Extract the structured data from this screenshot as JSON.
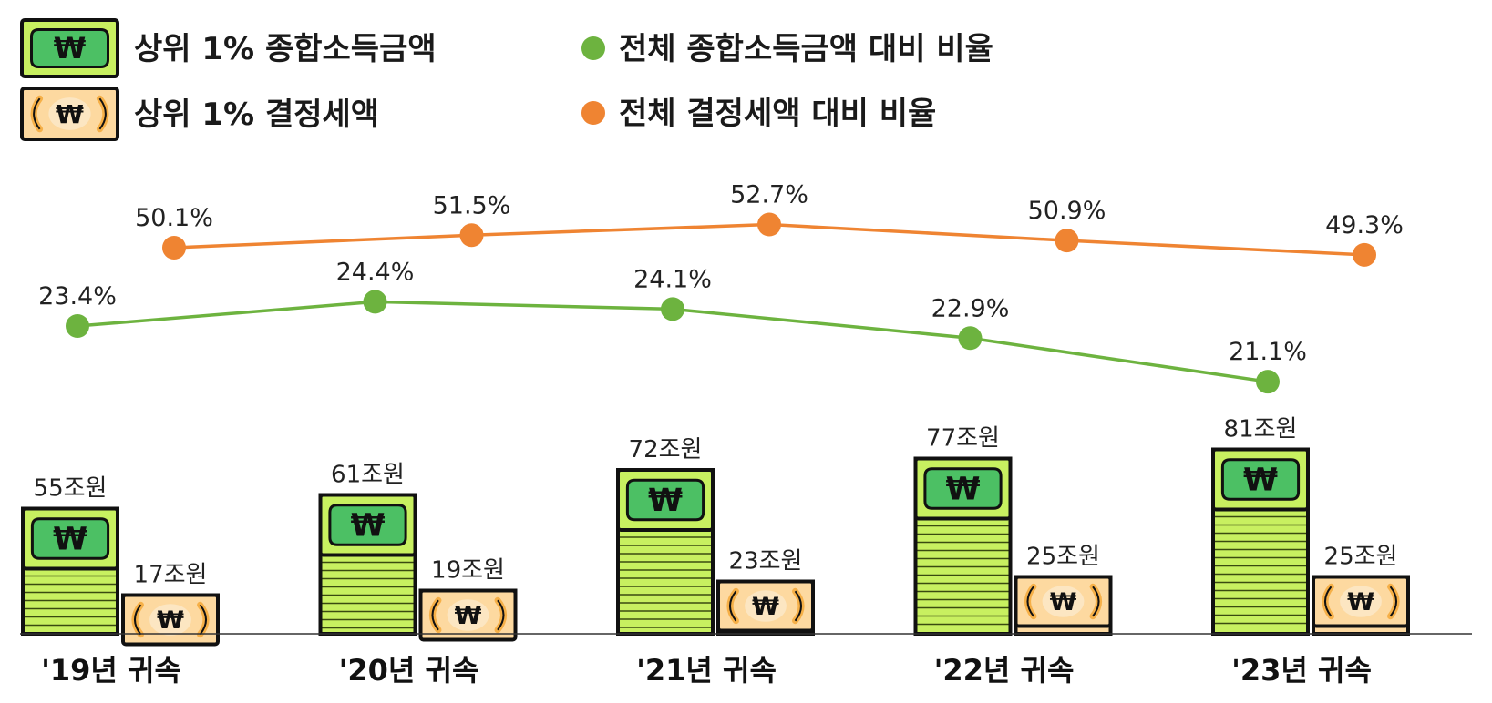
{
  "chart_data": {
    "type": "bar",
    "categories": [
      "'19년 귀속",
      "'20년 귀속",
      "'21년 귀속",
      "'22년 귀속",
      "'23년 귀속"
    ],
    "bar_series": [
      {
        "name": "상위 1% 종합소득금액",
        "values": [
          55,
          61,
          72,
          77,
          81
        ],
        "labels": [
          "55조원",
          "61조원",
          "72조원",
          "77조원",
          "81조원"
        ],
        "color": "#7dd64a"
      },
      {
        "name": "상위 1% 결정세액",
        "values": [
          17,
          19,
          23,
          25,
          25
        ],
        "labels": [
          "17조원",
          "19조원",
          "23조원",
          "25조원",
          "25조원"
        ],
        "color": "#f4a23a"
      }
    ],
    "line_series": [
      {
        "name": "전체 결정세액 대비 비율",
        "values": [
          50.1,
          51.5,
          52.7,
          50.9,
          49.3
        ],
        "labels": [
          "50.1%",
          "51.5%",
          "52.7%",
          "50.9%",
          "49.3%"
        ],
        "color": "#ef8432"
      },
      {
        "name": "전체 종합소득금액 대비 비율",
        "values": [
          23.4,
          24.4,
          24.1,
          22.9,
          21.1
        ],
        "labels": [
          "23.4%",
          "24.4%",
          "24.1%",
          "22.9%",
          "21.1%"
        ],
        "color": "#6db33f"
      }
    ],
    "legend": {
      "placement": "top",
      "items": [
        {
          "name": "상위 1% 종합소득금액",
          "icon": "green-banknote-icon"
        },
        {
          "name": "상위 1% 결정세액",
          "icon": "orange-banknote-icon"
        },
        {
          "name": "전체 종합소득금액 대비 비율",
          "icon": "green-dot-icon"
        },
        {
          "name": "전체 결정세액 대비 비율",
          "icon": "orange-dot-icon"
        }
      ]
    },
    "title": "",
    "xlabel": "",
    "ylabel": "",
    "grid": false
  },
  "colors": {
    "green_bill": "#c8f060",
    "green_center": "#4cc064",
    "orange_bill": "#fdd9a0",
    "orange_center": "#f6b048",
    "outline": "#111111"
  }
}
